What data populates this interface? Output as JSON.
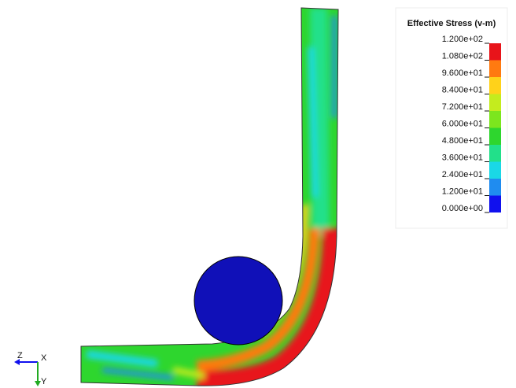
{
  "legend": {
    "title": "Effective Stress (v-m)",
    "labels": [
      "1.200e+02",
      "1.080e+02",
      "9.600e+01",
      "8.400e+01",
      "7.200e+01",
      "6.000e+01",
      "4.800e+01",
      "3.600e+01",
      "2.400e+01",
      "1.200e+01",
      "0.000e+00"
    ],
    "colors": [
      "#e8141a",
      "#ff7a10",
      "#ffd21a",
      "#c4ec1e",
      "#7ce61e",
      "#2ed62e",
      "#22e08a",
      "#1ad8e6",
      "#1f8cf0",
      "#1010ee"
    ]
  },
  "triad": {
    "z": "Z",
    "x": "X",
    "y": "Y"
  }
}
